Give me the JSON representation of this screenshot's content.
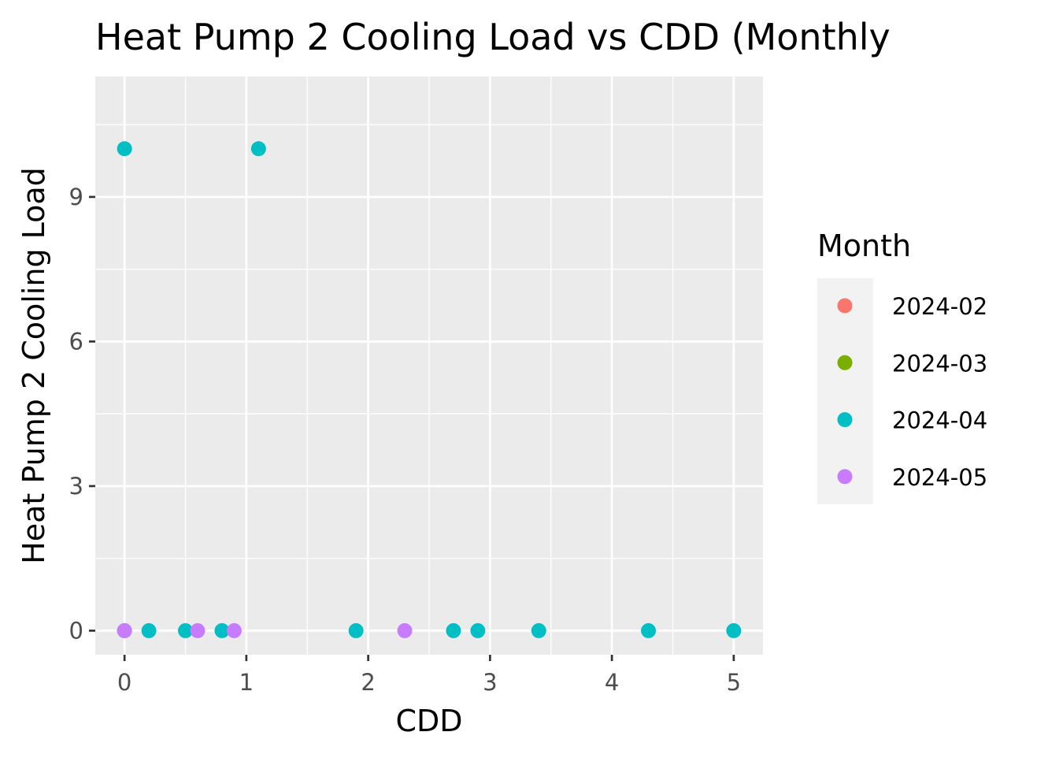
{
  "chart_data": {
    "type": "scatter",
    "title": "Heat Pump 2 Cooling Load vs CDD (Monthly",
    "xlabel": "CDD",
    "ylabel": "Heat Pump 2 Cooling Load",
    "xlim": [
      -0.24,
      5.24
    ],
    "ylim": [
      -0.5,
      11.5
    ],
    "x_ticks": [
      0,
      1,
      2,
      3,
      4,
      5
    ],
    "y_ticks": [
      0,
      3,
      6,
      9
    ],
    "grid": true,
    "legend": {
      "title": "Month",
      "placement": "right"
    },
    "series": [
      {
        "name": "2024-02",
        "color": "#F8766D",
        "points": []
      },
      {
        "name": "2024-03",
        "color": "#7CAE00",
        "points": []
      },
      {
        "name": "2024-04",
        "color": "#00BFC4",
        "points": [
          {
            "x": 0,
            "y": 10
          },
          {
            "x": 1.1,
            "y": 10
          },
          {
            "x": 0,
            "y": 0
          },
          {
            "x": 0.2,
            "y": 0
          },
          {
            "x": 0.5,
            "y": 0
          },
          {
            "x": 0.8,
            "y": 0
          },
          {
            "x": 1.9,
            "y": 0
          },
          {
            "x": 2.7,
            "y": 0
          },
          {
            "x": 2.9,
            "y": 0
          },
          {
            "x": 3.4,
            "y": 0
          },
          {
            "x": 4.3,
            "y": 0
          },
          {
            "x": 5.0,
            "y": 0
          }
        ]
      },
      {
        "name": "2024-05",
        "color": "#C77CFF",
        "points": [
          {
            "x": 0,
            "y": 0
          },
          {
            "x": 0.6,
            "y": 0
          },
          {
            "x": 0.9,
            "y": 0
          },
          {
            "x": 2.3,
            "y": 0
          }
        ]
      }
    ]
  }
}
